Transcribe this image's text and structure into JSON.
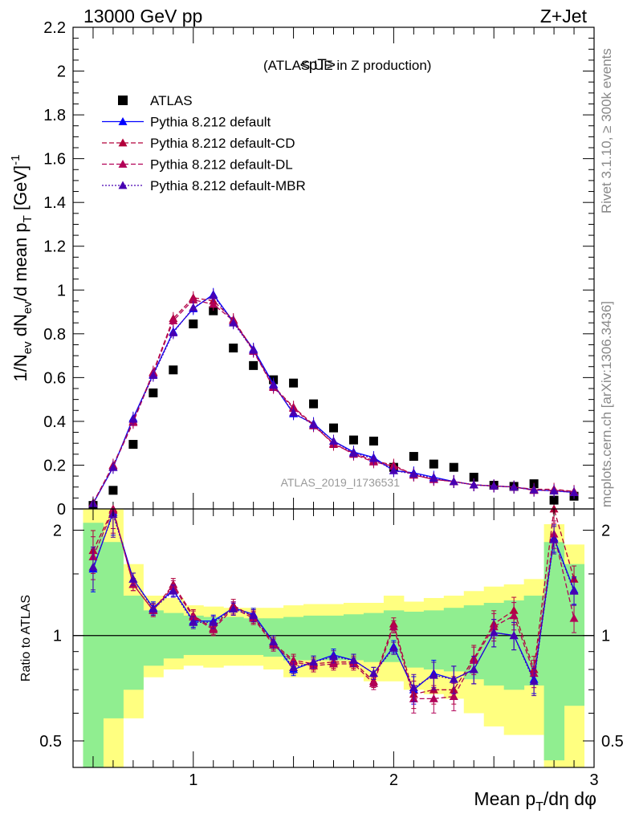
{
  "header": {
    "left": "13000 GeV pp",
    "right": "Z+Jet"
  },
  "side_text": {
    "rivet": "Rivet 3.1.10, ≥ 300k events",
    "mcplots": "mcplots.cern.ch [arXiv:1306.3436]"
  },
  "chart_data": [
    {
      "type": "scatter",
      "title": "<pT>",
      "subtitle": "(ATLAS UE in Z production)",
      "analysis": "ATLAS_2019_I1736531",
      "ylabel": "1/N_ev dN_ev/d mean p_T [GeV]^-1",
      "ylim": [
        0,
        2.2
      ],
      "xlim": [
        0.4,
        3.0
      ],
      "x": [
        0.5,
        0.6,
        0.7,
        0.8,
        0.9,
        1.0,
        1.1,
        1.2,
        1.3,
        1.4,
        1.5,
        1.6,
        1.7,
        1.8,
        1.9,
        2.0,
        2.1,
        2.2,
        2.3,
        2.4,
        2.5,
        2.6,
        2.7,
        2.8,
        2.9
      ],
      "yticks": [
        "0",
        "0.2",
        "0.4",
        "0.6",
        "0.8",
        "1",
        "1.2",
        "1.4",
        "1.6",
        "1.8",
        "2",
        "2.2"
      ],
      "legend_position": "top-left",
      "series": [
        {
          "name": "ATLAS",
          "color": "#000000",
          "marker": "square",
          "values": [
            0.016,
            0.085,
            0.295,
            0.53,
            0.635,
            0.845,
            0.905,
            0.735,
            0.655,
            0.59,
            0.575,
            0.48,
            0.37,
            0.315,
            0.31,
            0.19,
            0.24,
            0.205,
            0.19,
            0.145,
            0.108,
            0.103,
            0.115,
            0.04,
            0.058
          ]
        },
        {
          "name": "Pythia 8.212 default",
          "color": "#0000ff",
          "marker": "triangle",
          "line": "solid",
          "values": [
            0.025,
            0.19,
            0.415,
            0.615,
            0.81,
            0.915,
            0.98,
            0.855,
            0.73,
            0.57,
            0.435,
            0.39,
            0.31,
            0.26,
            0.235,
            0.175,
            0.165,
            0.145,
            0.125,
            0.11,
            0.105,
            0.1,
            0.087,
            0.083,
            0.075
          ]
        },
        {
          "name": "Pythia 8.212 default-CD",
          "color": "#b2003b",
          "marker": "triangle",
          "line": "dashed",
          "values": [
            0.028,
            0.2,
            0.4,
            0.625,
            0.87,
            0.965,
            0.95,
            0.865,
            0.725,
            0.56,
            0.465,
            0.385,
            0.295,
            0.255,
            0.22,
            0.2,
            0.155,
            0.135,
            0.125,
            0.11,
            0.105,
            0.1,
            0.09,
            0.09,
            0.08
          ]
        },
        {
          "name": "Pythia 8.212 default-DL",
          "color": "#b20057",
          "marker": "triangle",
          "line": "dashed",
          "values": [
            0.026,
            0.195,
            0.395,
            0.62,
            0.86,
            0.955,
            0.935,
            0.86,
            0.72,
            0.555,
            0.46,
            0.38,
            0.3,
            0.25,
            0.215,
            0.195,
            0.155,
            0.135,
            0.125,
            0.11,
            0.105,
            0.1,
            0.085,
            0.085,
            0.078
          ]
        },
        {
          "name": "Pythia 8.212 default-MBR",
          "color": "#4800b2",
          "marker": "triangle",
          "line": "dotted",
          "values": [
            0.025,
            0.19,
            0.41,
            0.61,
            0.805,
            0.92,
            0.975,
            0.85,
            0.725,
            0.565,
            0.44,
            0.385,
            0.31,
            0.255,
            0.23,
            0.175,
            0.16,
            0.14,
            0.125,
            0.11,
            0.105,
            0.1,
            0.087,
            0.082,
            0.075
          ]
        }
      ]
    },
    {
      "type": "line",
      "ylabel": "Ratio to ATLAS",
      "xlabel": "Mean p_T/dη dφ",
      "ylim": [
        0.42,
        2.3
      ],
      "yscale": "log",
      "xlim": [
        0.4,
        3.0
      ],
      "xticks": [
        "1",
        "2",
        "3"
      ],
      "yticks": [
        "0.5",
        "1",
        "2"
      ],
      "x": [
        0.5,
        0.6,
        0.7,
        0.8,
        0.9,
        1.0,
        1.1,
        1.2,
        1.3,
        1.4,
        1.5,
        1.6,
        1.7,
        1.8,
        1.9,
        2.0,
        2.1,
        2.2,
        2.3,
        2.4,
        2.5,
        2.6,
        2.7,
        2.8,
        2.9
      ],
      "band_outer": {
        "color": "#ffff80",
        "lo": [
          0.42,
          0.42,
          0.58,
          0.76,
          0.8,
          0.82,
          0.81,
          0.82,
          0.82,
          0.8,
          0.76,
          0.76,
          0.76,
          0.76,
          0.74,
          0.74,
          0.7,
          0.68,
          0.66,
          0.6,
          0.55,
          0.52,
          0.52,
          0.42,
          0.42
        ],
        "hi": [
          2.3,
          2.3,
          1.6,
          1.3,
          1.28,
          1.22,
          1.21,
          1.2,
          1.2,
          1.2,
          1.22,
          1.23,
          1.23,
          1.24,
          1.24,
          1.3,
          1.25,
          1.28,
          1.3,
          1.34,
          1.38,
          1.4,
          1.45,
          2.08,
          1.82
        ]
      },
      "band_inner": {
        "color": "#90ee90",
        "lo": [
          0.42,
          0.58,
          0.7,
          0.82,
          0.86,
          0.88,
          0.88,
          0.88,
          0.88,
          0.87,
          0.85,
          0.85,
          0.85,
          0.85,
          0.84,
          0.84,
          0.81,
          0.8,
          0.79,
          0.75,
          0.72,
          0.7,
          0.72,
          0.44,
          0.63
        ],
        "hi": [
          2.1,
          1.85,
          1.3,
          1.18,
          1.16,
          1.14,
          1.13,
          1.13,
          1.12,
          1.12,
          1.13,
          1.14,
          1.14,
          1.15,
          1.16,
          1.18,
          1.17,
          1.18,
          1.2,
          1.22,
          1.24,
          1.26,
          1.3,
          1.85,
          1.6
        ]
      },
      "series": [
        {
          "name": "Pythia 8.212 default",
          "color": "#0000ff",
          "line": "solid",
          "values": [
            1.55,
            2.25,
            1.45,
            1.2,
            1.35,
            1.1,
            1.1,
            1.2,
            1.15,
            0.96,
            0.8,
            0.84,
            0.88,
            0.85,
            0.78,
            0.93,
            0.7,
            0.78,
            0.75,
            0.8,
            1.02,
            1.0,
            0.75,
            1.9,
            1.35
          ]
        },
        {
          "name": "Pythia 8.212 default-CD",
          "color": "#b2003b",
          "line": "dashed",
          "values": [
            1.75,
            2.35,
            1.4,
            1.18,
            1.4,
            1.14,
            1.05,
            1.22,
            1.13,
            0.95,
            0.85,
            0.83,
            0.84,
            0.84,
            0.74,
            1.08,
            0.68,
            0.7,
            0.7,
            0.86,
            1.08,
            1.18,
            0.8,
            2.3,
            1.45
          ]
        },
        {
          "name": "Pythia 8.212 default-DL",
          "color": "#b20057",
          "line": "dashed",
          "values": [
            1.68,
            2.28,
            1.4,
            1.18,
            1.38,
            1.13,
            1.04,
            1.2,
            1.12,
            0.94,
            0.84,
            0.82,
            0.83,
            0.83,
            0.73,
            1.06,
            0.66,
            0.66,
            0.67,
            0.85,
            1.06,
            1.14,
            0.78,
            1.95,
            1.12
          ]
        },
        {
          "name": "Pythia 8.212 default-MBR",
          "color": "#4800b2",
          "line": "dotted",
          "values": [
            1.57,
            2.22,
            1.45,
            1.19,
            1.34,
            1.09,
            1.09,
            1.19,
            1.14,
            0.96,
            0.81,
            0.84,
            0.87,
            0.85,
            0.78,
            0.92,
            0.71,
            0.77,
            0.75,
            0.8,
            1.02,
            1.0,
            0.74,
            1.88,
            1.34
          ]
        }
      ]
    }
  ]
}
